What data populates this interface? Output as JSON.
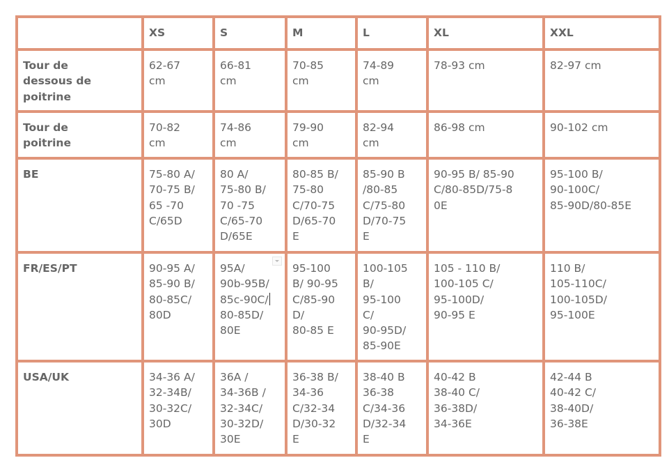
{
  "header": [
    "",
    "XS",
    "S",
    "M",
    "L",
    "XL",
    "XXL"
  ],
  "rows": [
    {
      "label": [
        "Tour de",
        "dessous de",
        "poitrine"
      ],
      "cells": [
        [
          "62-67",
          "cm"
        ],
        [
          "66-81",
          "cm"
        ],
        [
          "70-85",
          "cm"
        ],
        [
          "74-89",
          "cm"
        ],
        [
          "78-93 cm"
        ],
        [
          "82-97 cm"
        ]
      ]
    },
    {
      "label": [
        "Tour de",
        "poitrine"
      ],
      "cells": [
        [
          "70-82",
          "cm"
        ],
        [
          "74-86",
          "cm"
        ],
        [
          "79-90",
          "cm"
        ],
        [
          "82-94",
          "cm"
        ],
        [
          "86-98 cm"
        ],
        [
          "90-102 cm"
        ]
      ]
    },
    {
      "label": [
        "BE"
      ],
      "cells": [
        [
          "75-80 A/",
          "70-75 B/",
          "65 -70",
          "C/65D"
        ],
        [
          "80 A/",
          "75-80 B/",
          "70 -75",
          "C/65-70",
          "D/65E"
        ],
        [
          "80-85 B/",
          "75-80",
          "C/70-75",
          "D/65-70",
          "E"
        ],
        [
          "85-90 B",
          "/80-85",
          "C/75-80",
          "D/70-75",
          "E"
        ],
        [
          "90-95 B/ 85-90",
          "C/80-85D/75-8",
          "0E"
        ],
        [
          "95-100 B/",
          "90-100C/",
          "85-90D/80-85E"
        ]
      ]
    },
    {
      "label": [
        "FR/ES/PT"
      ],
      "cells": [
        [
          "90-95 A/",
          "85-90 B/",
          "80-85C/",
          "80D"
        ],
        [
          "95A/",
          "90b-95B/",
          "85c-90C/",
          "80-85D/",
          "80E"
        ],
        [
          "95-100",
          "B/ 90-95",
          "C/85-90",
          "D/",
          "80-85 E"
        ],
        [
          "100-105",
          "B/",
          "95-100",
          "C/",
          "90-95D/",
          "85-90E"
        ],
        [
          "105 - 110 B/",
          "100-105 C/",
          "95-100D/",
          "90-95 E"
        ],
        [
          "110 B/",
          "105-110C/",
          "100-105D/",
          "95-100E"
        ]
      ]
    },
    {
      "label": [
        "USA/UK"
      ],
      "cells": [
        [
          "34-36 A/",
          "32-34B/",
          "30-32C/",
          "30D"
        ],
        [
          "36A /",
          "34-36B /",
          "32-34C/",
          "30-32D/",
          "30E"
        ],
        [
          "36-38 B/",
          "34-36",
          "C/32-34",
          "D/30-32",
          "E"
        ],
        [
          "38-40 B",
          "36-38",
          "C/34-36",
          "D/32-34",
          "E"
        ],
        [
          "40-42 B",
          "38-40 C/",
          "36-38D/",
          "34-36E"
        ],
        [
          "42-44 B",
          "40-42 C/",
          "38-40D/",
          "36-38E"
        ]
      ]
    }
  ],
  "colors": {
    "border": "#e0957a",
    "text": "#666666"
  }
}
